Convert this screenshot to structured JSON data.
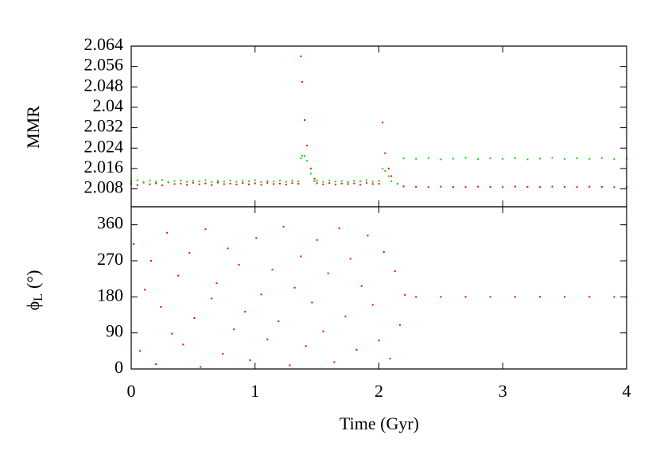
{
  "chart_data": [
    {
      "type": "scatter",
      "ylabel": "MMR",
      "xlim": [
        0,
        4
      ],
      "ylim": [
        2.001,
        2.064
      ],
      "yticks": [
        2.008,
        2.016,
        2.024,
        2.032,
        2.04,
        2.048,
        2.056,
        2.064
      ],
      "x": [
        0,
        0.05,
        0.1,
        0.15,
        0.2,
        0.25,
        0.3,
        0.35,
        0.4,
        0.45,
        0.5,
        0.55,
        0.6,
        0.65,
        0.7,
        0.75,
        0.8,
        0.85,
        0.9,
        0.95,
        1,
        1.05,
        1.1,
        1.15,
        1.2,
        1.25,
        1.3,
        1.35,
        1.37,
        1.38,
        1.4,
        1.42,
        1.45,
        1.48,
        1.5,
        1.55,
        1.6,
        1.65,
        1.7,
        1.75,
        1.8,
        1.85,
        1.9,
        1.95,
        2,
        2.03,
        2.05,
        2.08,
        2.1,
        2.15,
        2.2,
        2.3,
        2.4,
        2.5,
        2.6,
        2.7,
        2.8,
        2.9,
        3,
        3.1,
        3.2,
        3.3,
        3.4,
        3.5,
        3.6,
        3.7,
        3.8,
        3.9,
        4
      ],
      "series": [
        {
          "color": "#ff0000",
          "values": [
            2.01,
            2.0095,
            2.0105,
            2.0098,
            2.0102,
            2.0094,
            2.0106,
            2.0099,
            2.0101,
            2.0096,
            2.0104,
            2.0098,
            2.0102,
            2.0095,
            2.0105,
            2.0099,
            2.0101,
            2.0097,
            2.0103,
            2.0098,
            2.0102,
            2.0096,
            2.0104,
            2.0099,
            2.0101,
            2.0097,
            2.0103,
            2.01,
            2.06,
            2.05,
            2.035,
            2.025,
            2.016,
            2.012,
            2.0102,
            2.0098,
            2.0103,
            2.0097,
            2.0101,
            2.0099,
            2.0102,
            2.0096,
            2.0104,
            2.0099,
            2.01,
            2.034,
            2.022,
            2.016,
            2.013,
            2.01,
            2.009,
            2.0088,
            2.0087,
            2.0089,
            2.0088,
            2.0087,
            2.0089,
            2.0088,
            2.0087,
            2.0089,
            2.0088,
            2.0087,
            2.0089,
            2.0088,
            2.0087,
            2.0089,
            2.0088,
            2.0087,
            2.0088
          ]
        },
        {
          "color": "#00e000",
          "values": [
            2.011,
            2.0114,
            2.0107,
            2.0112,
            2.0109,
            2.0115,
            2.0106,
            2.0111,
            2.0113,
            2.0108,
            2.0112,
            2.011,
            2.0114,
            2.0107,
            2.0111,
            2.0109,
            2.0113,
            2.0108,
            2.0112,
            2.011,
            2.0114,
            2.0107,
            2.0111,
            2.0109,
            2.0113,
            2.0108,
            2.0112,
            2.011,
            2.02,
            2.021,
            2.021,
            2.019,
            2.014,
            2.011,
            2.0112,
            2.0108,
            2.0113,
            2.0109,
            2.0111,
            2.0107,
            2.0112,
            2.011,
            2.0114,
            2.0108,
            2.0111,
            2.016,
            2.015,
            2.013,
            2.011,
            2.01,
            2.02,
            2.0198,
            2.0201,
            2.0196,
            2.0199,
            2.0202,
            2.0197,
            2.02,
            2.0198,
            2.0201,
            2.0196,
            2.0199,
            2.0202,
            2.0197,
            2.02,
            2.0198,
            2.0201,
            2.0197,
            2.0199
          ]
        }
      ]
    },
    {
      "type": "scatter",
      "ylabel": "ϕ",
      "ylabel_sub": "L",
      "ylabel_unit": "(°)",
      "xlabel": "Time (Gyr)",
      "xlim": [
        0,
        4
      ],
      "ylim": [
        0,
        405
      ],
      "xticks": [
        0,
        1,
        2,
        3,
        4
      ],
      "yticks": [
        0,
        90,
        180,
        270,
        360
      ],
      "x": [
        0.02,
        0.07,
        0.11,
        0.16,
        0.2,
        0.24,
        0.29,
        0.33,
        0.38,
        0.42,
        0.47,
        0.51,
        0.56,
        0.6,
        0.65,
        0.69,
        0.74,
        0.78,
        0.83,
        0.87,
        0.92,
        0.96,
        1.01,
        1.05,
        1.1,
        1.14,
        1.19,
        1.23,
        1.28,
        1.32,
        1.37,
        1.41,
        1.46,
        1.5,
        1.55,
        1.59,
        1.64,
        1.68,
        1.73,
        1.77,
        1.82,
        1.86,
        1.91,
        1.95,
        2,
        2.04,
        2.09,
        2.13,
        2.17,
        2.21,
        2.3,
        2.5,
        2.7,
        2.9,
        3.1,
        3.3,
        3.5,
        3.7,
        3.9,
        4
      ],
      "series": [
        {
          "color": "#ff0000",
          "values": [
            312,
            45,
            198,
            270,
            12,
            155,
            340,
            88,
            233,
            61,
            290,
            127,
            5,
            349,
            176,
            214,
            38,
            301,
            99,
            260,
            143,
            22,
            327,
            186,
            74,
            248,
            119,
            355,
            9,
            203,
            281,
            57,
            166,
            322,
            94,
            239,
            17,
            351,
            131,
            275,
            48,
            207,
            333,
            160,
            71,
            292,
            26,
            244,
            110,
            185,
            180,
            180,
            180,
            180,
            180,
            180,
            180,
            180,
            180,
            180
          ]
        }
      ]
    }
  ]
}
